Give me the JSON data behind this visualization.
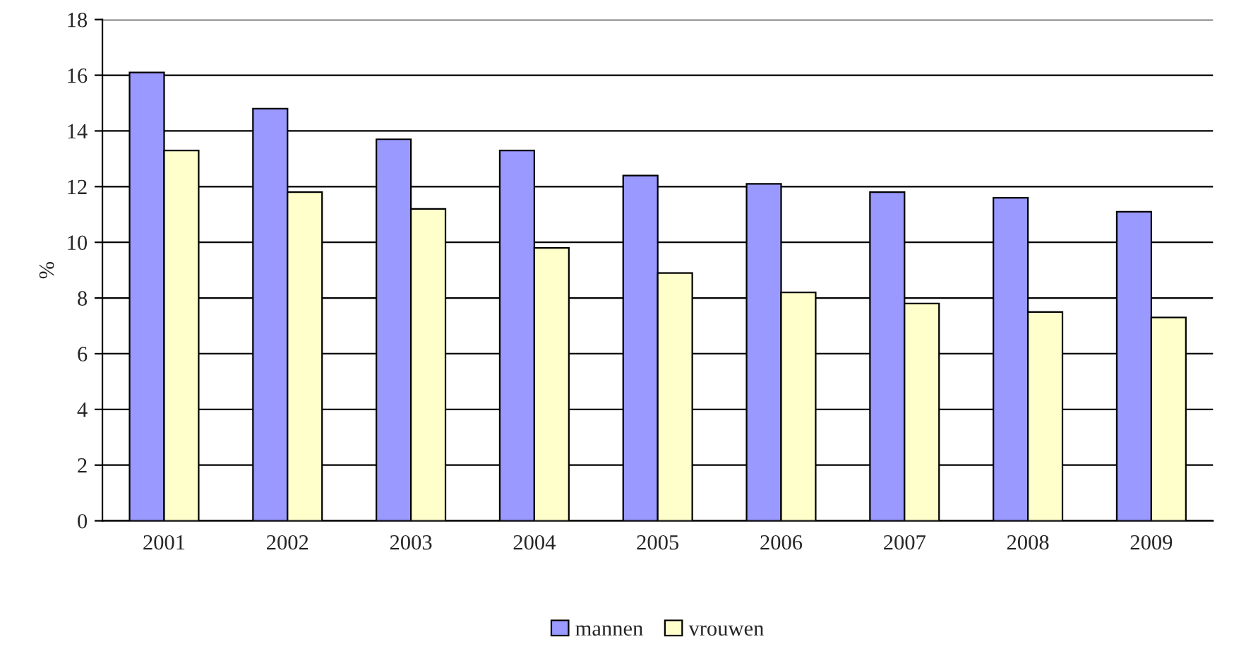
{
  "chart_data": {
    "type": "bar",
    "ylabel": "%",
    "categories": [
      "2001",
      "2002",
      "2003",
      "2004",
      "2005",
      "2006",
      "2007",
      "2008",
      "2009"
    ],
    "series": [
      {
        "name": "mannen",
        "color": "#9999ff",
        "values": [
          16.1,
          14.8,
          13.7,
          13.3,
          12.4,
          12.1,
          11.8,
          11.6,
          11.1
        ]
      },
      {
        "name": "vrouwen",
        "color": "#ffffcc",
        "values": [
          13.3,
          11.8,
          11.2,
          9.8,
          8.9,
          8.2,
          7.8,
          7.5,
          7.3
        ]
      }
    ],
    "ylim": [
      0,
      18
    ],
    "yticks": [
      0,
      2,
      4,
      6,
      8,
      10,
      12,
      14,
      16,
      18
    ],
    "grid": "y",
    "legend": "bottom"
  }
}
